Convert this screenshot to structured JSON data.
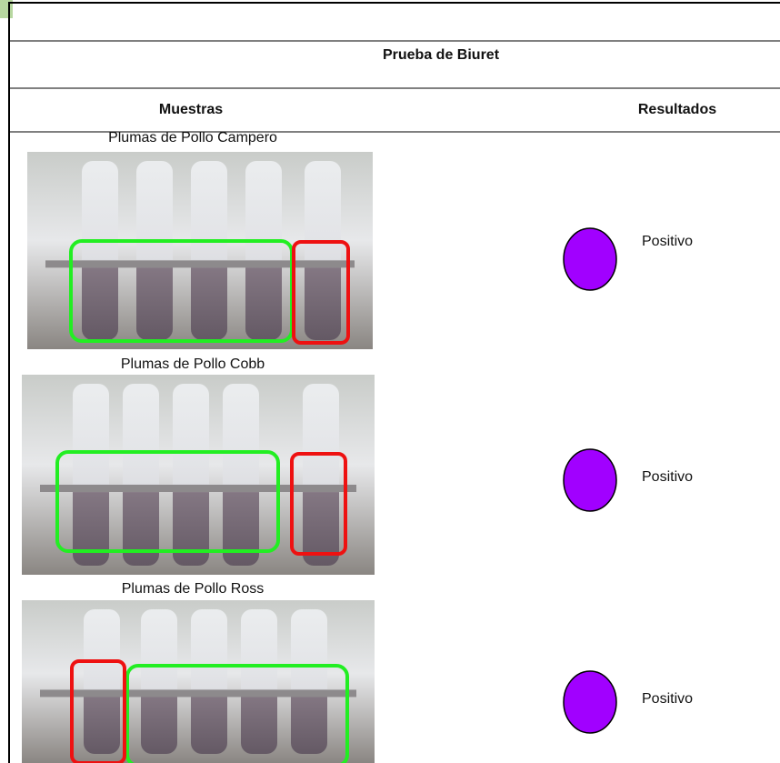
{
  "header": {
    "title": "Prueba de Biuret"
  },
  "table": {
    "columns": [
      "Muestras",
      "Resultados"
    ],
    "rows": [
      {
        "sample": "Plumas de Pollo Campero",
        "result": "Positivo"
      },
      {
        "sample": "Plumas de Pollo Cobb",
        "result": "Positivo"
      },
      {
        "sample": "Plumas de Pollo Ross",
        "result": "Positivo"
      }
    ]
  }
}
